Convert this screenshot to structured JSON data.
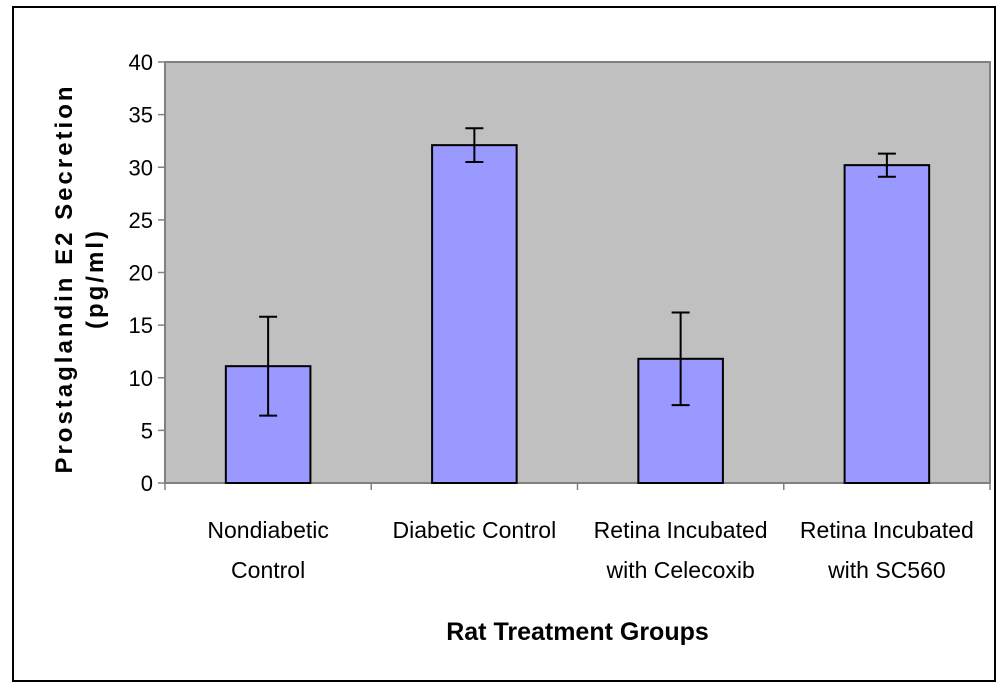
{
  "chart_data": {
    "type": "bar",
    "title": "",
    "xlabel": "Rat Treatment Groups",
    "ylabel_lines": [
      "Prostaglandin E2 Secretion",
      "(pg/ml)"
    ],
    "ylim": [
      0,
      40
    ],
    "yticks": [
      0,
      5,
      10,
      15,
      20,
      25,
      30,
      35,
      40
    ],
    "categories": [
      [
        "Nondiabetic",
        "Control"
      ],
      [
        "Diabetic Control"
      ],
      [
        "Retina Incubated",
        "with Celecoxib"
      ],
      [
        "Retina Incubated",
        "with SC560"
      ]
    ],
    "values": [
      11.1,
      32.1,
      11.8,
      30.2
    ],
    "error": [
      4.7,
      1.6,
      4.4,
      1.1
    ],
    "grid": false,
    "legend": "none",
    "colors": {
      "bar_fill": "#9999ff",
      "plot_background": "#c0c0c0",
      "plot_border": "#808080",
      "axis": "#808080",
      "text": "#000000"
    }
  }
}
